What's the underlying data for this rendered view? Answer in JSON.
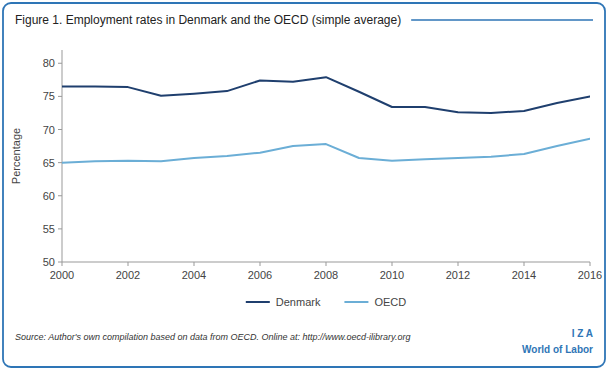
{
  "chart_data": {
    "type": "line",
    "title": "Figure 1. Employment rates in Denmark and the OECD (simple average)",
    "ylabel": "Percentage",
    "annotations": [
      "Source: Author's own compilation based on data from OECD. Online at: http://www.oecd-ilibrary.org",
      "I Z A",
      "World of Labor"
    ],
    "x": [
      2000,
      2001,
      2002,
      2003,
      2004,
      2005,
      2006,
      2007,
      2008,
      2009,
      2010,
      2011,
      2012,
      2013,
      2014,
      2015,
      2016
    ],
    "series": [
      {
        "name": "Denmark",
        "color": "#1F3F6E",
        "values": [
          76.5,
          76.5,
          76.4,
          75.1,
          75.4,
          75.8,
          77.4,
          77.2,
          77.9,
          75.7,
          73.4,
          73.4,
          72.6,
          72.5,
          72.8,
          74.0,
          75.0
        ]
      },
      {
        "name": "OECD",
        "color": "#6BAED6",
        "values": [
          65.0,
          65.2,
          65.3,
          65.2,
          65.7,
          66.0,
          66.5,
          67.5,
          67.8,
          65.7,
          65.3,
          65.5,
          65.7,
          65.9,
          66.3,
          67.5,
          68.6
        ]
      }
    ],
    "xlim": [
      2000,
      2016
    ],
    "xticks": [
      2000,
      2002,
      2004,
      2006,
      2008,
      2010,
      2012,
      2014,
      2016
    ],
    "ylim": [
      50,
      82
    ],
    "yticks": [
      50,
      55,
      60,
      65,
      70,
      75,
      80
    ],
    "grid": false,
    "legend": "bottom"
  }
}
